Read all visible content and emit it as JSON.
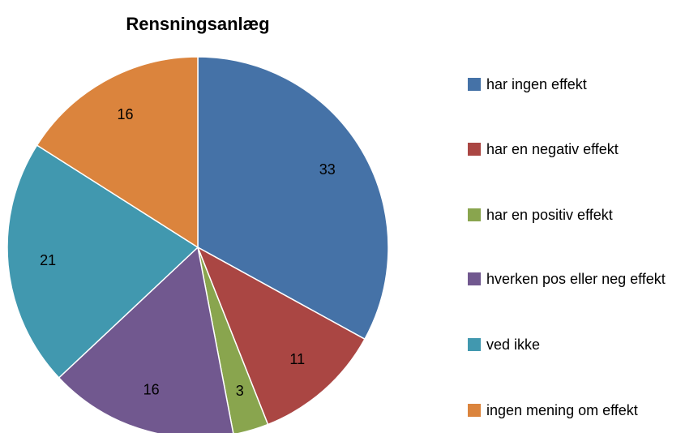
{
  "chart_data": {
    "type": "pie",
    "title": "Rensningsanlæg",
    "categories": [
      "har ingen effekt",
      "har en negativ effekt",
      "har en positiv effekt",
      "hverken pos eller neg effekt",
      "ved ikke",
      "ingen mening om effekt"
    ],
    "values": [
      33,
      11,
      3,
      16,
      21,
      16
    ],
    "colors": [
      "#4572a7",
      "#aa4643",
      "#89a54e",
      "#71588f",
      "#4198af",
      "#db843d"
    ],
    "legend": "right"
  }
}
